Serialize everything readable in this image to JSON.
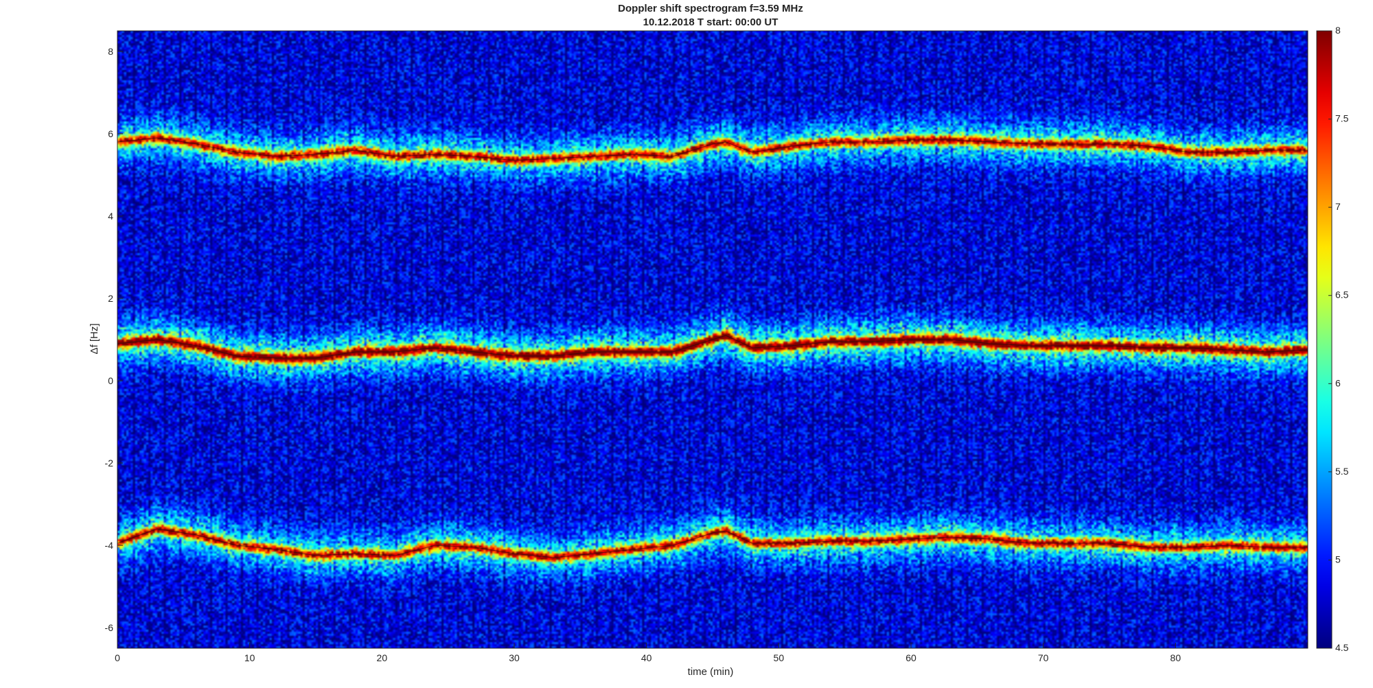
{
  "chart_data": {
    "type": "heatmap",
    "title": "Doppler shift spectrogram f=3.59 MHz",
    "subtitle": "10.12.2018   T start: 00:00 UT",
    "xlabel": "time (min)",
    "ylabel": "Δf [Hz]",
    "xlim": [
      0,
      90
    ],
    "ylim": [
      -6.5,
      8.5
    ],
    "xticks": [
      0,
      10,
      20,
      30,
      40,
      50,
      60,
      70,
      80
    ],
    "yticks": [
      -6,
      -4,
      -2,
      0,
      2,
      4,
      6,
      8
    ],
    "colorbar": {
      "colormap": "jet",
      "clim": [
        4.5,
        8
      ],
      "ticks": [
        4.5,
        5,
        5.5,
        6,
        6.5,
        7,
        7.5,
        8
      ]
    },
    "series": [
      {
        "x": [
          0,
          3,
          6,
          9,
          12,
          15,
          18,
          21,
          24,
          27,
          30,
          33,
          36,
          39,
          42,
          45,
          46,
          48,
          51,
          54,
          57,
          60,
          63,
          66,
          69,
          72,
          75,
          78,
          81,
          84,
          87,
          90
        ],
        "y": [
          5.8,
          5.9,
          5.75,
          5.55,
          5.45,
          5.5,
          5.6,
          5.45,
          5.5,
          5.45,
          5.35,
          5.4,
          5.45,
          5.5,
          5.45,
          5.75,
          5.8,
          5.55,
          5.7,
          5.8,
          5.8,
          5.85,
          5.85,
          5.8,
          5.75,
          5.75,
          5.75,
          5.7,
          5.55,
          5.55,
          5.6,
          5.6
        ]
      },
      {
        "x": [
          0,
          3,
          6,
          9,
          12,
          15,
          18,
          21,
          24,
          27,
          30,
          33,
          36,
          39,
          42,
          45,
          46,
          48,
          51,
          54,
          57,
          60,
          63,
          66,
          69,
          72,
          75,
          78,
          81,
          84,
          87,
          90
        ],
        "y": [
          0.9,
          1.0,
          0.85,
          0.6,
          0.55,
          0.55,
          0.7,
          0.7,
          0.8,
          0.7,
          0.6,
          0.6,
          0.7,
          0.7,
          0.7,
          1.0,
          1.1,
          0.8,
          0.85,
          0.95,
          0.95,
          1.0,
          1.0,
          0.9,
          0.85,
          0.85,
          0.85,
          0.8,
          0.8,
          0.75,
          0.7,
          0.75
        ]
      },
      {
        "x": [
          0,
          3,
          6,
          9,
          12,
          15,
          18,
          21,
          24,
          27,
          30,
          33,
          36,
          39,
          42,
          45,
          46,
          48,
          51,
          54,
          57,
          60,
          63,
          66,
          69,
          72,
          75,
          78,
          81,
          84,
          87,
          90
        ],
        "y": [
          -3.95,
          -3.6,
          -3.75,
          -4.0,
          -4.1,
          -4.25,
          -4.2,
          -4.25,
          -4.0,
          -4.05,
          -4.2,
          -4.3,
          -4.2,
          -4.1,
          -4.0,
          -3.7,
          -3.65,
          -3.95,
          -3.95,
          -3.9,
          -3.9,
          -3.85,
          -3.8,
          -3.85,
          -3.95,
          -3.95,
          -3.95,
          -4.05,
          -4.05,
          -4.0,
          -4.05,
          -4.05
        ]
      }
    ]
  }
}
